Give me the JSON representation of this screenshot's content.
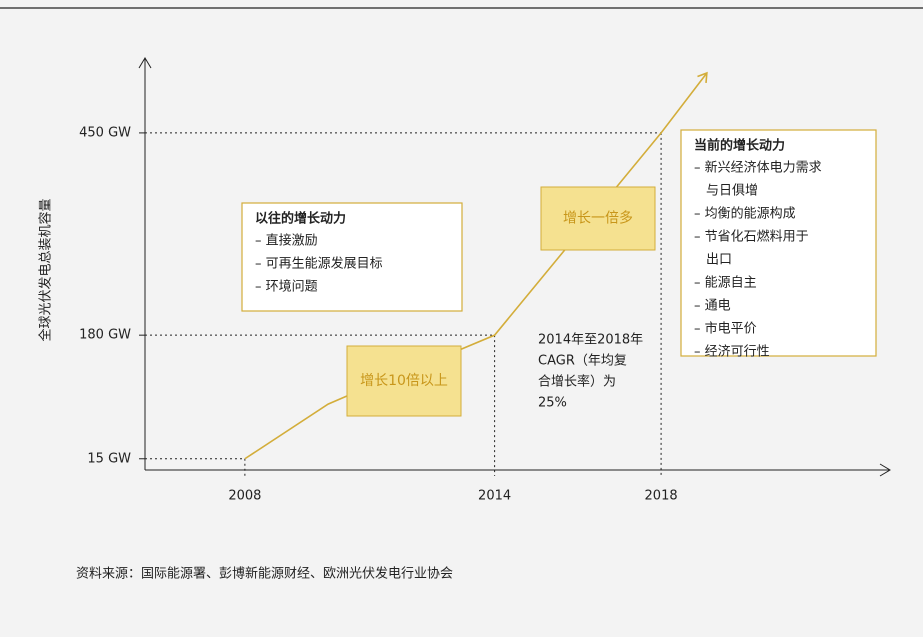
{
  "chart_data": {
    "type": "line",
    "y_label": "全球光伏发电总装机容量",
    "x": [
      2008,
      2010,
      2010.5,
      2012,
      2012.5,
      2014,
      2018,
      2019.1
    ],
    "series": [
      {
        "name": null,
        "color": "#d3ad3a",
        "values": [
          15,
          88,
          100,
          140,
          145,
          180,
          450,
          530
        ]
      }
    ],
    "xlim": [
      2005.6,
      2023.5
    ],
    "xticks": [
      2008,
      2014,
      2018
    ],
    "ylim": [
      0,
      550
    ],
    "yticks": [
      {
        "value": 15,
        "label": "15 GW"
      },
      {
        "value": 180,
        "label": "180 GW"
      },
      {
        "value": 450,
        "label": "450 GW"
      }
    ],
    "annotations": [
      {
        "title": "以往的增长动力",
        "lines": [
          "– 直接激励",
          "– 可再生能源发展目标",
          "– 环境问题"
        ]
      },
      {
        "title": "当前的增长动力",
        "lines": [
          "– 新兴经济体电力需求",
          "与日俱增",
          "– 均衡的能源构成",
          "– 节省化石燃料用于",
          "出口",
          "– 能源自主",
          "– 通电",
          "– 市电平价",
          "– 经济可行性"
        ]
      },
      {
        "lines": [
          "2014年至2018年",
          "CAGR（年均复",
          "合增长率）为",
          "25%"
        ]
      },
      {
        "label": "增长10倍以上"
      },
      {
        "label": "增长一倍多"
      }
    ],
    "source": "资料来源：国际能源署、彭博新能源财经、欧洲光伏发电行业协会"
  }
}
